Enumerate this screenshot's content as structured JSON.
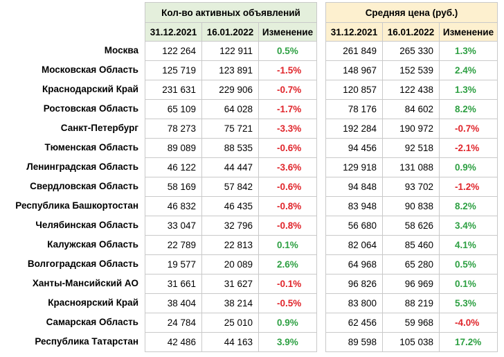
{
  "headers": {
    "left_title": "Кол-во активных объявлений",
    "right_title": "Средняя цена (руб.)",
    "date1": "31.12.2021",
    "date2": "16.01.2022",
    "change": "Изменение"
  },
  "colors": {
    "left_header_bg": "#e4efdc",
    "right_header_bg": "#fdf0cf",
    "positive": "#2ea043",
    "negative": "#e0252b"
  },
  "rows": [
    {
      "region": "Москва",
      "ads_d1": "122 264",
      "ads_d2": "122 911",
      "ads_chg": "0.5%",
      "price_d1": "261 849",
      "price_d2": "265 330",
      "price_chg": "1.3%"
    },
    {
      "region": "Московская Область",
      "ads_d1": "125 719",
      "ads_d2": "123 891",
      "ads_chg": "-1.5%",
      "price_d1": "148 967",
      "price_d2": "152 539",
      "price_chg": "2.4%"
    },
    {
      "region": "Краснодарский Край",
      "ads_d1": "231 631",
      "ads_d2": "229 906",
      "ads_chg": "-0.7%",
      "price_d1": "120 857",
      "price_d2": "122 438",
      "price_chg": "1.3%"
    },
    {
      "region": "Ростовская Область",
      "ads_d1": "65 109",
      "ads_d2": "64 028",
      "ads_chg": "-1.7%",
      "price_d1": "78 176",
      "price_d2": "84 602",
      "price_chg": "8.2%"
    },
    {
      "region": "Санкт-Петербург",
      "ads_d1": "78 273",
      "ads_d2": "75 721",
      "ads_chg": "-3.3%",
      "price_d1": "192 284",
      "price_d2": "190 972",
      "price_chg": "-0.7%"
    },
    {
      "region": "Тюменская Область",
      "ads_d1": "89 089",
      "ads_d2": "88 535",
      "ads_chg": "-0.6%",
      "price_d1": "94 456",
      "price_d2": "92 518",
      "price_chg": "-2.1%"
    },
    {
      "region": "Ленинградская Область",
      "ads_d1": "46 122",
      "ads_d2": "44 447",
      "ads_chg": "-3.6%",
      "price_d1": "129 918",
      "price_d2": "131 088",
      "price_chg": "0.9%"
    },
    {
      "region": "Свердловская Область",
      "ads_d1": "58 169",
      "ads_d2": "57 842",
      "ads_chg": "-0.6%",
      "price_d1": "94 848",
      "price_d2": "93 702",
      "price_chg": "-1.2%"
    },
    {
      "region": "Республика Башкортостан",
      "ads_d1": "46 832",
      "ads_d2": "46 435",
      "ads_chg": "-0.8%",
      "price_d1": "83 948",
      "price_d2": "90 838",
      "price_chg": "8.2%"
    },
    {
      "region": "Челябинская Область",
      "ads_d1": "33 047",
      "ads_d2": "32 796",
      "ads_chg": "-0.8%",
      "price_d1": "56 680",
      "price_d2": "58 626",
      "price_chg": "3.4%"
    },
    {
      "region": "Калужская Область",
      "ads_d1": "22 789",
      "ads_d2": "22 813",
      "ads_chg": "0.1%",
      "price_d1": "82 064",
      "price_d2": "85 460",
      "price_chg": "4.1%"
    },
    {
      "region": "Волгоградская Область",
      "ads_d1": "19 577",
      "ads_d2": "20 089",
      "ads_chg": "2.6%",
      "price_d1": "64 968",
      "price_d2": "65 280",
      "price_chg": "0.5%"
    },
    {
      "region": "Ханты-Мансийский АО",
      "ads_d1": "31 661",
      "ads_d2": "31 627",
      "ads_chg": "-0.1%",
      "price_d1": "96 826",
      "price_d2": "96 969",
      "price_chg": "0.1%"
    },
    {
      "region": "Красноярский Край",
      "ads_d1": "38 404",
      "ads_d2": "38 214",
      "ads_chg": "-0.5%",
      "price_d1": "83 800",
      "price_d2": "88 219",
      "price_chg": "5.3%"
    },
    {
      "region": "Самарская Область",
      "ads_d1": "24 784",
      "ads_d2": "25 010",
      "ads_chg": "0.9%",
      "price_d1": "62 456",
      "price_d2": "59 968",
      "price_chg": "-4.0%"
    },
    {
      "region": "Республика Татарстан",
      "ads_d1": "42 486",
      "ads_d2": "44 163",
      "ads_chg": "3.9%",
      "price_d1": "89 598",
      "price_d2": "105 038",
      "price_chg": "17.2%"
    }
  ]
}
